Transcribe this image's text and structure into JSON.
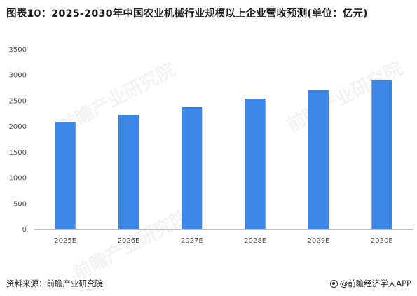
{
  "title": "图表10：2025-2030年中国农业机械行业规模以上企业营收预测(单位：亿元)",
  "source": "资料来源：前瞻产业研究院",
  "brand": "@前瞻经济学人APP",
  "watermark": "前瞻产业研究院",
  "colors": {
    "bar": "#3c86e5",
    "axis": "#bfbfbf",
    "text": "#555555"
  },
  "chart_data": {
    "type": "bar",
    "categories": [
      "2025E",
      "2026E",
      "2027E",
      "2028E",
      "2029E",
      "2030E"
    ],
    "values": [
      2080,
      2220,
      2370,
      2530,
      2700,
      2890
    ],
    "ylim": [
      0,
      3500
    ],
    "yticks": [
      0,
      500,
      1000,
      1500,
      2000,
      2500,
      3000,
      3500
    ],
    "grid": false,
    "legend": "none"
  }
}
